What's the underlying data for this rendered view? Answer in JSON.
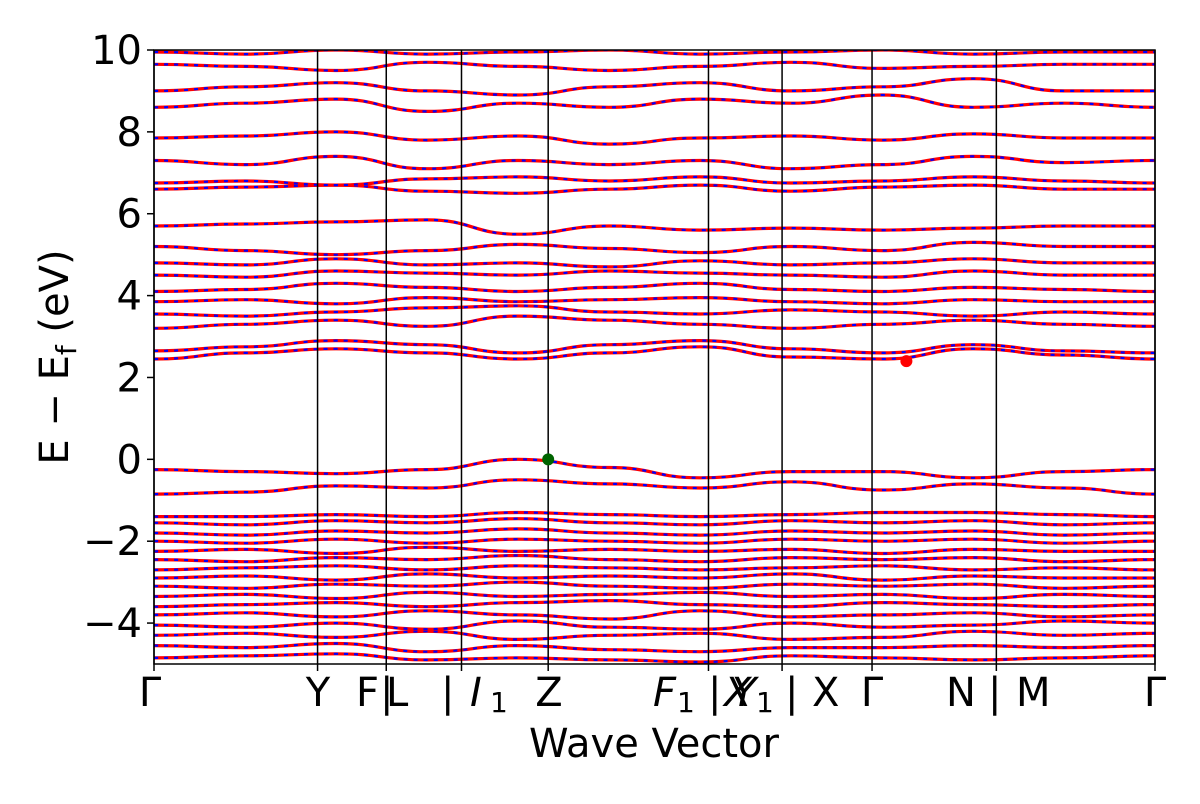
{
  "chart_data": {
    "type": "line",
    "title": "",
    "xlabel": "Wave Vector",
    "ylabel": "E − E_f (eV)",
    "ylabel_main": "E − E",
    "ylabel_sub": "f",
    "ylabel_unit": " (eV)",
    "ylim": [
      -5,
      10
    ],
    "yticks": [
      -4,
      -2,
      0,
      2,
      4,
      6,
      8,
      10
    ],
    "ytick_labels": [
      "−4",
      "−2",
      "0",
      "2",
      "4",
      "6",
      "8",
      "10"
    ],
    "grid": false,
    "legend": "none",
    "xticks": [
      {
        "k": 0.0,
        "label": "Γ"
      },
      {
        "k": 1.0,
        "label": "Y"
      },
      {
        "k": 1.42,
        "label": "F"
      },
      {
        "k": 1.42,
        "label": "F | L"
      },
      {
        "k": 1.88,
        "label": "L | I_1"
      },
      {
        "k": 2.41,
        "label": "Z"
      },
      {
        "k": 3.39,
        "label": "F_1 | X"
      },
      {
        "k": 3.84,
        "label": "Y_1 | X"
      },
      {
        "k": 4.39,
        "label": "Γ"
      },
      {
        "k": 5.15,
        "label": "N | M"
      },
      {
        "k": 6.12,
        "label": "Γ"
      }
    ],
    "xtick_display": [
      "Γ",
      "Y",
      "F",
      "|",
      "L",
      "|",
      "I",
      "1",
      "Z",
      "F",
      "1",
      "|",
      "X",
      "Y",
      "1",
      "|",
      "X",
      "Γ",
      "N",
      "|",
      "M",
      "Γ"
    ],
    "series_colors": {
      "spin_up": "#ff0000",
      "spin_down": "#0000ff"
    },
    "markers": [
      {
        "name": "VBM",
        "k": 2.41,
        "E": 0.0,
        "color": "#006400"
      },
      {
        "name": "CBM",
        "k": 4.6,
        "E": 2.4,
        "color": "#ff0000"
      }
    ],
    "bands": [
      {
        "E": [
          -4.85,
          -4.8,
          -4.75,
          -4.9,
          -4.85,
          -4.9,
          -4.95,
          -4.8,
          -4.85,
          -4.9,
          -4.85,
          -4.8
        ]
      },
      {
        "E": [
          -4.55,
          -4.6,
          -4.5,
          -4.7,
          -4.55,
          -4.65,
          -4.7,
          -4.6,
          -4.6,
          -4.55,
          -4.6,
          -4.55
        ]
      },
      {
        "E": [
          -4.3,
          -4.25,
          -4.35,
          -4.2,
          -4.4,
          -4.3,
          -4.25,
          -4.4,
          -4.35,
          -4.2,
          -4.3,
          -4.25
        ]
      },
      {
        "E": [
          -4.05,
          -4.1,
          -4.0,
          -4.15,
          -3.95,
          -4.1,
          -4.15,
          -4.0,
          -4.1,
          -4.05,
          -3.95,
          -4.0
        ]
      },
      {
        "E": [
          -3.8,
          -3.75,
          -3.85,
          -3.7,
          -3.8,
          -3.9,
          -3.7,
          -3.85,
          -3.8,
          -3.75,
          -3.85,
          -3.8
        ]
      },
      {
        "E": [
          -3.6,
          -3.55,
          -3.5,
          -3.6,
          -3.5,
          -3.45,
          -3.55,
          -3.6,
          -3.5,
          -3.55,
          -3.6,
          -3.55
        ]
      },
      {
        "E": [
          -3.35,
          -3.3,
          -3.4,
          -3.25,
          -3.35,
          -3.3,
          -3.25,
          -3.35,
          -3.3,
          -3.4,
          -3.3,
          -3.35
        ]
      },
      {
        "E": [
          -3.1,
          -3.15,
          -3.05,
          -3.1,
          -3.0,
          -3.1,
          -3.15,
          -3.05,
          -3.1,
          -3.05,
          -3.15,
          -3.1
        ]
      },
      {
        "E": [
          -2.9,
          -2.85,
          -2.95,
          -2.8,
          -2.9,
          -2.85,
          -2.9,
          -2.8,
          -2.95,
          -2.85,
          -2.9,
          -2.9
        ]
      },
      {
        "E": [
          -2.7,
          -2.65,
          -2.6,
          -2.7,
          -2.6,
          -2.65,
          -2.7,
          -2.65,
          -2.6,
          -2.7,
          -2.65,
          -2.7
        ]
      },
      {
        "E": [
          -2.45,
          -2.5,
          -2.4,
          -2.45,
          -2.35,
          -2.45,
          -2.5,
          -2.4,
          -2.45,
          -2.4,
          -2.5,
          -2.45
        ]
      },
      {
        "E": [
          -2.25,
          -2.2,
          -2.3,
          -2.15,
          -2.25,
          -2.2,
          -2.25,
          -2.2,
          -2.3,
          -2.2,
          -2.25,
          -2.25
        ]
      },
      {
        "E": [
          -2.0,
          -2.05,
          -1.95,
          -2.05,
          -1.95,
          -2.0,
          -2.05,
          -1.95,
          -2.0,
          -1.95,
          -2.05,
          -2.0
        ]
      },
      {
        "E": [
          -1.8,
          -1.85,
          -1.75,
          -1.8,
          -1.7,
          -1.8,
          -1.85,
          -1.75,
          -1.8,
          -1.75,
          -1.85,
          -1.8
        ]
      },
      {
        "E": [
          -1.55,
          -1.6,
          -1.5,
          -1.55,
          -1.45,
          -1.55,
          -1.6,
          -1.5,
          -1.55,
          -1.5,
          -1.6,
          -1.55
        ]
      },
      {
        "E": [
          -1.4,
          -1.4,
          -1.35,
          -1.4,
          -1.3,
          -1.35,
          -1.4,
          -1.35,
          -1.3,
          -1.3,
          -1.35,
          -1.4
        ]
      },
      {
        "E": [
          -0.85,
          -0.8,
          -0.65,
          -0.7,
          -0.5,
          -0.6,
          -0.7,
          -0.55,
          -0.75,
          -0.6,
          -0.7,
          -0.85
        ]
      },
      {
        "E": [
          -0.25,
          -0.3,
          -0.35,
          -0.25,
          0.0,
          -0.2,
          -0.45,
          -0.3,
          -0.3,
          -0.45,
          -0.3,
          -0.25
        ]
      },
      {
        "E": [
          2.45,
          2.6,
          2.7,
          2.6,
          2.45,
          2.6,
          2.75,
          2.5,
          2.45,
          2.7,
          2.55,
          2.45
        ]
      },
      {
        "E": [
          2.65,
          2.75,
          2.9,
          2.8,
          2.6,
          2.8,
          2.9,
          2.7,
          2.6,
          2.8,
          2.65,
          2.6
        ]
      },
      {
        "E": [
          3.2,
          3.3,
          3.4,
          3.25,
          3.5,
          3.4,
          3.3,
          3.2,
          3.3,
          3.4,
          3.3,
          3.25
        ]
      },
      {
        "E": [
          3.55,
          3.5,
          3.6,
          3.7,
          3.75,
          3.6,
          3.55,
          3.65,
          3.6,
          3.5,
          3.6,
          3.55
        ]
      },
      {
        "E": [
          3.85,
          3.9,
          3.8,
          3.95,
          3.85,
          3.9,
          3.95,
          3.85,
          3.8,
          3.9,
          3.85,
          3.85
        ]
      },
      {
        "E": [
          4.1,
          4.15,
          4.3,
          4.2,
          4.1,
          4.2,
          4.3,
          4.15,
          4.1,
          4.2,
          4.15,
          4.1
        ]
      },
      {
        "E": [
          4.5,
          4.45,
          4.6,
          4.55,
          4.5,
          4.6,
          4.55,
          4.5,
          4.45,
          4.6,
          4.5,
          4.5
        ]
      },
      {
        "E": [
          4.8,
          4.75,
          4.9,
          4.75,
          4.8,
          4.7,
          4.85,
          4.75,
          4.8,
          4.9,
          4.8,
          4.8
        ]
      },
      {
        "E": [
          5.2,
          5.1,
          5.0,
          5.1,
          5.25,
          5.15,
          5.05,
          5.2,
          5.1,
          5.3,
          5.2,
          5.2
        ]
      },
      {
        "E": [
          5.7,
          5.75,
          5.8,
          5.85,
          5.5,
          5.7,
          5.6,
          5.65,
          5.6,
          5.65,
          5.7,
          5.7
        ]
      },
      {
        "E": [
          6.6,
          6.65,
          6.7,
          6.55,
          6.5,
          6.6,
          6.7,
          6.55,
          6.65,
          6.7,
          6.6,
          6.6
        ]
      },
      {
        "E": [
          6.75,
          6.8,
          6.7,
          6.85,
          6.9,
          6.8,
          6.9,
          6.75,
          6.8,
          6.9,
          6.8,
          6.75
        ]
      },
      {
        "E": [
          7.3,
          7.2,
          7.4,
          7.1,
          7.3,
          7.2,
          7.3,
          7.1,
          7.2,
          7.4,
          7.25,
          7.3
        ]
      },
      {
        "E": [
          7.85,
          7.9,
          8.0,
          7.8,
          7.9,
          7.7,
          7.85,
          7.9,
          7.8,
          7.95,
          7.85,
          7.85
        ]
      },
      {
        "E": [
          8.6,
          8.7,
          8.8,
          8.5,
          8.7,
          8.6,
          8.8,
          8.7,
          8.9,
          8.6,
          8.7,
          8.6
        ]
      },
      {
        "E": [
          9.0,
          9.1,
          9.2,
          9.0,
          8.9,
          9.1,
          9.2,
          9.0,
          9.1,
          9.3,
          9.0,
          9.0
        ]
      },
      {
        "E": [
          9.65,
          9.6,
          9.5,
          9.7,
          9.6,
          9.5,
          9.6,
          9.7,
          9.55,
          9.6,
          9.65,
          9.65
        ]
      },
      {
        "E": [
          9.95,
          9.9,
          10.0,
          9.9,
          9.95,
          10.0,
          9.9,
          9.95,
          10.0,
          9.9,
          9.95,
          9.95
        ]
      }
    ]
  }
}
